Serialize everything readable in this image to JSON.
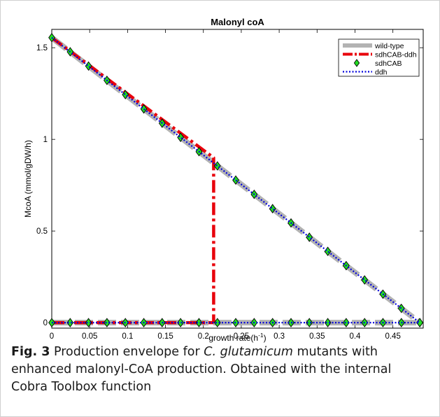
{
  "chart_data": {
    "type": "line",
    "title": "Malonyl coA",
    "xlabel": "growth rate(h⁻¹)",
    "xlabel_base": "growth rate(h",
    "xlabel_sup": "-1",
    "xlabel_close": ")",
    "ylabel": "McoA (mmol/gDW/h)",
    "xlim": [
      0,
      0.49
    ],
    "ylim": [
      -0.03,
      1.6
    ],
    "x_ticks": [
      "0",
      "0.05",
      "0.1",
      "0.15",
      "0.2",
      "0.25",
      "0.3",
      "0.35",
      "0.4",
      "0.45"
    ],
    "y_ticks": [
      "0",
      "0.5",
      "1",
      "1.5"
    ],
    "grid": false,
    "legend_position": "top-right",
    "series": [
      {
        "name": "wild-type",
        "style": "thick-solid",
        "color": "#b3b3b3",
        "upper": [
          [
            0,
            1.555
          ],
          [
            0.4855,
            0
          ]
        ],
        "lower": [
          [
            0,
            0
          ],
          [
            0.4855,
            0
          ]
        ]
      },
      {
        "name": "sdhCAB-ddh",
        "style": "dash-dot",
        "color": "#e8000b",
        "upper": [
          [
            0,
            1.555
          ],
          [
            0.2135,
            0.9
          ],
          [
            0.2135,
            0
          ]
        ],
        "lower": [
          [
            0,
            0
          ],
          [
            0.2135,
            0
          ]
        ]
      },
      {
        "name": "sdhCAB",
        "style": "diamond-markers",
        "color": "#22dd22",
        "upper": [
          [
            0,
            1.555
          ],
          [
            0.0243,
            1.478
          ],
          [
            0.0485,
            1.4
          ],
          [
            0.0728,
            1.322
          ],
          [
            0.0971,
            1.244
          ],
          [
            0.1214,
            1.166
          ],
          [
            0.1456,
            1.088
          ],
          [
            0.1699,
            1.011
          ],
          [
            0.1942,
            0.933
          ],
          [
            0.2185,
            0.855
          ],
          [
            0.2427,
            0.778
          ],
          [
            0.267,
            0.7
          ],
          [
            0.2913,
            0.622
          ],
          [
            0.3156,
            0.544
          ],
          [
            0.3398,
            0.466
          ],
          [
            0.3641,
            0.389
          ],
          [
            0.3884,
            0.311
          ],
          [
            0.4127,
            0.233
          ],
          [
            0.4369,
            0.155
          ],
          [
            0.4612,
            0.078
          ],
          [
            0.4855,
            0
          ]
        ],
        "lower": [
          [
            0,
            0
          ],
          [
            0.0243,
            0
          ],
          [
            0.0485,
            0
          ],
          [
            0.0728,
            0
          ],
          [
            0.0971,
            0
          ],
          [
            0.1214,
            0
          ],
          [
            0.1456,
            0
          ],
          [
            0.1699,
            0
          ],
          [
            0.1942,
            0
          ],
          [
            0.2185,
            0
          ],
          [
            0.2427,
            0
          ],
          [
            0.267,
            0
          ],
          [
            0.2913,
            0
          ],
          [
            0.3156,
            0
          ],
          [
            0.3398,
            0
          ],
          [
            0.3641,
            0
          ],
          [
            0.3884,
            0
          ],
          [
            0.4127,
            0
          ],
          [
            0.4369,
            0
          ],
          [
            0.4612,
            0
          ],
          [
            0.4855,
            0
          ]
        ]
      },
      {
        "name": "ddh",
        "style": "dotted",
        "color": "#0000dd",
        "upper": [
          [
            0,
            1.555
          ],
          [
            0.4855,
            0
          ]
        ],
        "lower": [
          [
            0,
            0
          ],
          [
            0.4855,
            0
          ]
        ]
      }
    ]
  },
  "caption": {
    "label": "Fig. 3",
    "text_before": " Production envelope for ",
    "species": "C. glutamicum",
    "text_after": " mutants with enhanced malonyl-CoA production. Obtained with the internal Cobra Toolbox function"
  }
}
